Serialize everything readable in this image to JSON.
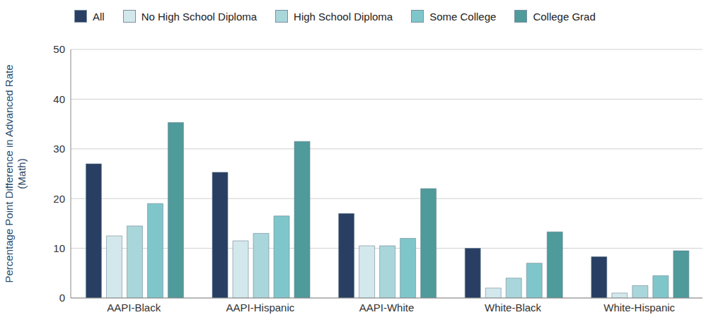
{
  "chart_data": {
    "type": "bar",
    "y_label": "Percentage Point Difference in Advanced Rate (Math)",
    "categories": [
      "AAPI-Black",
      "AAPI-Hispanic",
      "AAPI-White",
      "White-Black",
      "White-Hispanic"
    ],
    "series": [
      {
        "name": "All",
        "color": "#283f63",
        "values": [
          27,
          25.3,
          17,
          10,
          8.3
        ]
      },
      {
        "name": "No High School Diploma",
        "color": "#d3e8ec",
        "values": [
          12.5,
          11.5,
          10.5,
          2,
          1
        ]
      },
      {
        "name": "High School Diploma",
        "color": "#a9d6da",
        "values": [
          14.5,
          13,
          10.5,
          4,
          2.5
        ]
      },
      {
        "name": "Some College",
        "color": "#7fc6ca",
        "values": [
          19,
          16.5,
          12,
          7,
          4.5
        ]
      },
      {
        "name": "College Grad",
        "color": "#4f9a9b",
        "values": [
          35.3,
          31.5,
          22,
          13.3,
          9.5
        ]
      }
    ],
    "ylim": [
      0,
      50
    ],
    "yticks": [
      0,
      10,
      20,
      30,
      40,
      50
    ],
    "grid": true,
    "legend": "top"
  }
}
